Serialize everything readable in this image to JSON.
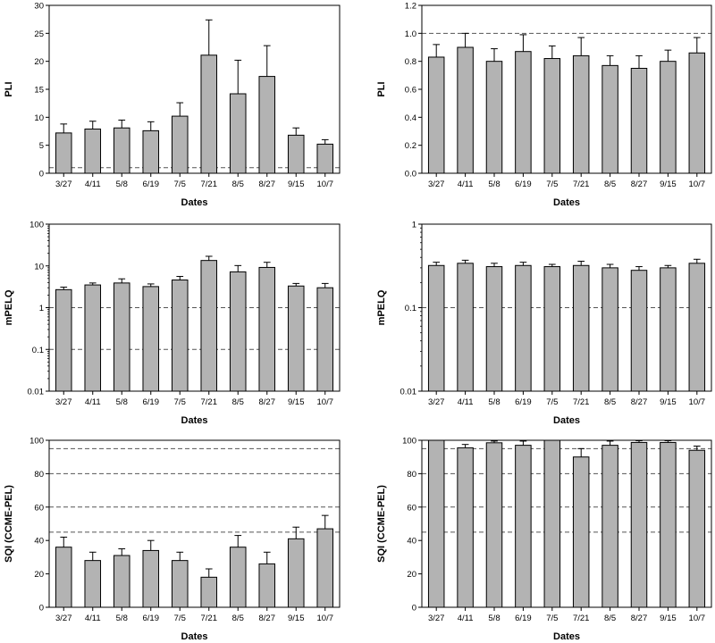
{
  "chart_data": [
    {
      "type": "bar",
      "categories": [
        "3/27",
        "4/11",
        "5/8",
        "6/19",
        "7/5",
        "7/21",
        "8/5",
        "8/27",
        "9/15",
        "10/7"
      ],
      "values": [
        7.2,
        7.9,
        8.1,
        7.6,
        10.2,
        21.1,
        14.2,
        17.3,
        6.8,
        5.2
      ],
      "errors": [
        1.6,
        1.4,
        1.4,
        1.6,
        2.4,
        6.3,
        6.0,
        5.5,
        1.3,
        0.8
      ],
      "xlabel": "Dates",
      "ylabel": "PLI",
      "ylim": [
        0,
        30
      ],
      "yscale": "linear",
      "yticks": [
        0,
        5,
        10,
        15,
        20,
        25,
        30
      ],
      "ytick_labels": [
        "0",
        "5",
        "10",
        "15",
        "20",
        "25",
        "30"
      ],
      "reference_lines": [
        1
      ],
      "grid": false,
      "bar_color": "#b3b3b3"
    },
    {
      "type": "bar",
      "categories": [
        "3/27",
        "4/11",
        "5/8",
        "6/19",
        "7/5",
        "7/21",
        "8/5",
        "8/27",
        "9/15",
        "10/7"
      ],
      "values": [
        0.83,
        0.9,
        0.8,
        0.87,
        0.82,
        0.84,
        0.77,
        0.75,
        0.8,
        0.86
      ],
      "errors": [
        0.09,
        0.1,
        0.09,
        0.12,
        0.09,
        0.13,
        0.07,
        0.09,
        0.08,
        0.11
      ],
      "xlabel": "Dates",
      "ylabel": "PLI",
      "ylim": [
        0,
        1.2
      ],
      "yscale": "linear",
      "yticks": [
        0,
        0.2,
        0.4,
        0.6,
        0.8,
        1.0,
        1.2
      ],
      "ytick_labels": [
        "0.0",
        "0.2",
        "0.4",
        "0.6",
        "0.8",
        "1.0",
        "1.2"
      ],
      "reference_lines": [
        1.0
      ],
      "grid": false,
      "bar_color": "#b3b3b3"
    },
    {
      "type": "bar",
      "categories": [
        "3/27",
        "4/11",
        "5/8",
        "6/19",
        "7/5",
        "7/21",
        "8/5",
        "8/27",
        "9/15",
        "10/7"
      ],
      "values": [
        2.7,
        3.5,
        3.9,
        3.2,
        4.6,
        13.5,
        7.2,
        9.2,
        3.3,
        3.0
      ],
      "errors": [
        0.4,
        0.4,
        1.0,
        0.5,
        1.0,
        3.5,
        3.0,
        3.0,
        0.5,
        0.8
      ],
      "xlabel": "Dates",
      "ylabel": "mPELQ",
      "ylim": [
        0.01,
        100
      ],
      "yscale": "log",
      "yticks": [
        0.01,
        0.1,
        1,
        10,
        100
      ],
      "ytick_labels": [
        "0.01",
        "0.1",
        "1",
        "10",
        "100"
      ],
      "reference_lines": [
        0.1,
        1
      ],
      "grid": false,
      "bar_color": "#b3b3b3"
    },
    {
      "type": "bar",
      "categories": [
        "3/27",
        "4/11",
        "5/8",
        "6/19",
        "7/5",
        "7/21",
        "8/5",
        "8/27",
        "9/15",
        "10/7"
      ],
      "values": [
        0.32,
        0.34,
        0.31,
        0.32,
        0.31,
        0.32,
        0.3,
        0.28,
        0.3,
        0.34
      ],
      "errors": [
        0.03,
        0.03,
        0.03,
        0.03,
        0.02,
        0.04,
        0.03,
        0.03,
        0.02,
        0.04
      ],
      "xlabel": "Dates",
      "ylabel": "mPELQ",
      "ylim": [
        0.01,
        1
      ],
      "yscale": "log",
      "yticks": [
        0.01,
        0.1,
        1
      ],
      "ytick_labels": [
        "0.01",
        "0.1",
        "1"
      ],
      "reference_lines": [
        0.1
      ],
      "grid": false,
      "bar_color": "#b3b3b3"
    },
    {
      "type": "bar",
      "categories": [
        "3/27",
        "4/11",
        "5/8",
        "6/19",
        "7/5",
        "7/21",
        "8/5",
        "8/27",
        "9/15",
        "10/7"
      ],
      "values": [
        36,
        28,
        31,
        34,
        28,
        18,
        36,
        26,
        41,
        47
      ],
      "errors": [
        6,
        5,
        4,
        6,
        5,
        5,
        7,
        7,
        7,
        8
      ],
      "xlabel": "Dates",
      "ylabel": "SQI (CCME-PEL)",
      "ylim": [
        0,
        100
      ],
      "yscale": "linear",
      "yticks": [
        0,
        20,
        40,
        60,
        80,
        100
      ],
      "ytick_labels": [
        "0",
        "20",
        "40",
        "60",
        "80",
        "100"
      ],
      "reference_lines": [
        45,
        60,
        80,
        95
      ],
      "grid": false,
      "bar_color": "#b3b3b3"
    },
    {
      "type": "bar",
      "categories": [
        "3/27",
        "4/11",
        "5/8",
        "6/19",
        "7/5",
        "7/21",
        "8/5",
        "8/27",
        "9/15",
        "10/7"
      ],
      "values": [
        100,
        95.5,
        98.5,
        97,
        100,
        90,
        97,
        98.7,
        98.7,
        94
      ],
      "errors": [
        0,
        2,
        1,
        2.5,
        0,
        5,
        2.5,
        1,
        1,
        2.5
      ],
      "xlabel": "Dates",
      "ylabel": "SQI (CCME-PEL)",
      "ylim": [
        0,
        100
      ],
      "yscale": "linear",
      "yticks": [
        0,
        20,
        40,
        60,
        80,
        100
      ],
      "ytick_labels": [
        "0",
        "20",
        "40",
        "60",
        "80",
        "100"
      ],
      "reference_lines": [
        45,
        60,
        80,
        95
      ],
      "grid": false,
      "bar_color": "#b3b3b3"
    }
  ]
}
